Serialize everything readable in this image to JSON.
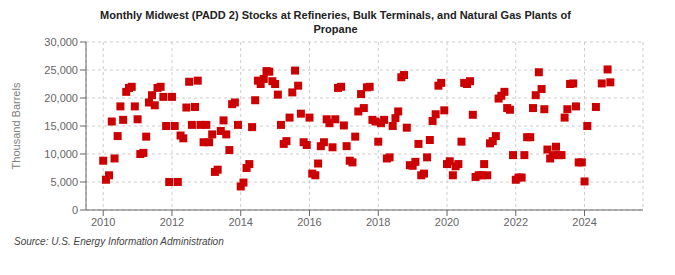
{
  "chart_data": {
    "type": "scatter",
    "title": "Monthly Midwest (PADD 2) Stocks at Refineries, Bulk Terminals, and Natural Gas Plants of\nPropane",
    "ylabel": "Thousand Barrels",
    "annotations": [
      "Source: U.S. Energy Information Administration"
    ],
    "color": "#cc0000",
    "marker": "square",
    "grid": true,
    "xlim": [
      2009.5,
      2025.7
    ],
    "xticks": [
      2010,
      2012,
      2014,
      2016,
      2018,
      2020,
      2022,
      2024
    ],
    "ylim": [
      0,
      30000
    ],
    "yticks": [
      0,
      {
        "value": 5000,
        "label": "5,000"
      },
      {
        "value": 10000,
        "label": "10,000"
      },
      {
        "value": 15000,
        "label": "15,000"
      },
      {
        "value": 20000,
        "label": "20,000"
      },
      {
        "value": 25000,
        "label": "25,000"
      },
      {
        "value": 30000,
        "label": "30,000"
      }
    ],
    "x": [
      2010,
      2010.08,
      2010.17,
      2010.25,
      2010.33,
      2010.42,
      2010.5,
      2010.58,
      2010.67,
      2010.75,
      2010.83,
      2010.92,
      2011,
      2011.08,
      2011.17,
      2011.25,
      2011.33,
      2011.42,
      2011.5,
      2011.58,
      2011.67,
      2011.75,
      2011.83,
      2011.92,
      2012,
      2012.08,
      2012.17,
      2012.25,
      2012.33,
      2012.42,
      2012.5,
      2012.58,
      2012.67,
      2012.75,
      2012.83,
      2012.92,
      2013,
      2013.08,
      2013.17,
      2013.25,
      2013.33,
      2013.42,
      2013.5,
      2013.58,
      2013.67,
      2013.75,
      2013.83,
      2013.92,
      2014,
      2014.08,
      2014.17,
      2014.25,
      2014.33,
      2014.42,
      2014.5,
      2014.58,
      2014.67,
      2014.75,
      2014.83,
      2014.92,
      2015,
      2015.08,
      2015.17,
      2015.25,
      2015.33,
      2015.42,
      2015.5,
      2015.58,
      2015.67,
      2015.75,
      2015.83,
      2015.92,
      2016,
      2016.08,
      2016.17,
      2016.25,
      2016.33,
      2016.42,
      2016.5,
      2016.58,
      2016.67,
      2016.75,
      2016.83,
      2016.92,
      2017,
      2017.08,
      2017.17,
      2017.25,
      2017.33,
      2017.42,
      2017.5,
      2017.58,
      2017.67,
      2017.75,
      2017.83,
      2017.92,
      2018,
      2018.08,
      2018.17,
      2018.25,
      2018.33,
      2018.42,
      2018.5,
      2018.58,
      2018.67,
      2018.75,
      2018.83,
      2018.92,
      2019,
      2019.08,
      2019.17,
      2019.25,
      2019.33,
      2019.42,
      2019.5,
      2019.58,
      2019.67,
      2019.75,
      2019.83,
      2019.92,
      2020,
      2020.08,
      2020.17,
      2020.25,
      2020.33,
      2020.42,
      2020.5,
      2020.58,
      2020.67,
      2020.75,
      2020.83,
      2020.92,
      2021,
      2021.08,
      2021.17,
      2021.25,
      2021.33,
      2021.42,
      2021.5,
      2021.58,
      2021.67,
      2021.75,
      2021.83,
      2021.92,
      2022,
      2022.08,
      2022.17,
      2022.25,
      2022.33,
      2022.42,
      2022.5,
      2022.58,
      2022.67,
      2022.75,
      2022.83,
      2022.92,
      2023,
      2023.08,
      2023.17,
      2023.25,
      2023.33,
      2023.42,
      2023.5,
      2023.58,
      2023.67,
      2023.75,
      2023.83,
      2023.92,
      2024,
      2024.08,
      2024.33,
      2024.5,
      2024.67,
      2024.75
    ],
    "values": [
      8800,
      5400,
      6200,
      15800,
      9200,
      13200,
      18500,
      16100,
      21100,
      21800,
      22000,
      18500,
      16200,
      10000,
      10200,
      13100,
      19200,
      20500,
      18700,
      21800,
      22000,
      20200,
      15000,
      5000,
      20200,
      15000,
      5000,
      13300,
      12800,
      18300,
      22900,
      15200,
      18400,
      23100,
      15200,
      12100,
      15200,
      12100,
      13500,
      6800,
      7200,
      14100,
      16000,
      13500,
      10700,
      18900,
      19200,
      15200,
      4200,
      4900,
      7500,
      8200,
      14800,
      19600,
      23100,
      22500,
      23400,
      24800,
      24700,
      23000,
      22500,
      20600,
      15200,
      11800,
      12300,
      16500,
      21000,
      24900,
      22200,
      17200,
      12100,
      11600,
      16500,
      6500,
      6200,
      8300,
      11400,
      12100,
      16200,
      15500,
      11200,
      16200,
      21800,
      22000,
      15100,
      11400,
      8800,
      8500,
      13100,
      17600,
      20700,
      18200,
      21900,
      22000,
      16100,
      15800,
      12200,
      15500,
      16100,
      9200,
      9400,
      15000,
      16400,
      17600,
      23700,
      24100,
      14700,
      8000,
      7900,
      8600,
      11800,
      6200,
      6500,
      9400,
      12500,
      15900,
      17100,
      22200,
      22700,
      17800,
      8200,
      8700,
      6200,
      7800,
      8200,
      12200,
      22700,
      22500,
      23000,
      17000,
      5900,
      6200,
      6200,
      8200,
      6200,
      11900,
      12300,
      13200,
      19900,
      20400,
      21100,
      18200,
      17900,
      9800,
      5400,
      5800,
      5800,
      9800,
      13000,
      13000,
      18200,
      20500,
      24600,
      21600,
      18000,
      10800,
      9200,
      9800,
      11300,
      9800,
      9800,
      16500,
      18000,
      22500,
      22600,
      18500,
      8500,
      8500,
      5100,
      15000,
      18400,
      22600,
      25100,
      22800
    ]
  }
}
